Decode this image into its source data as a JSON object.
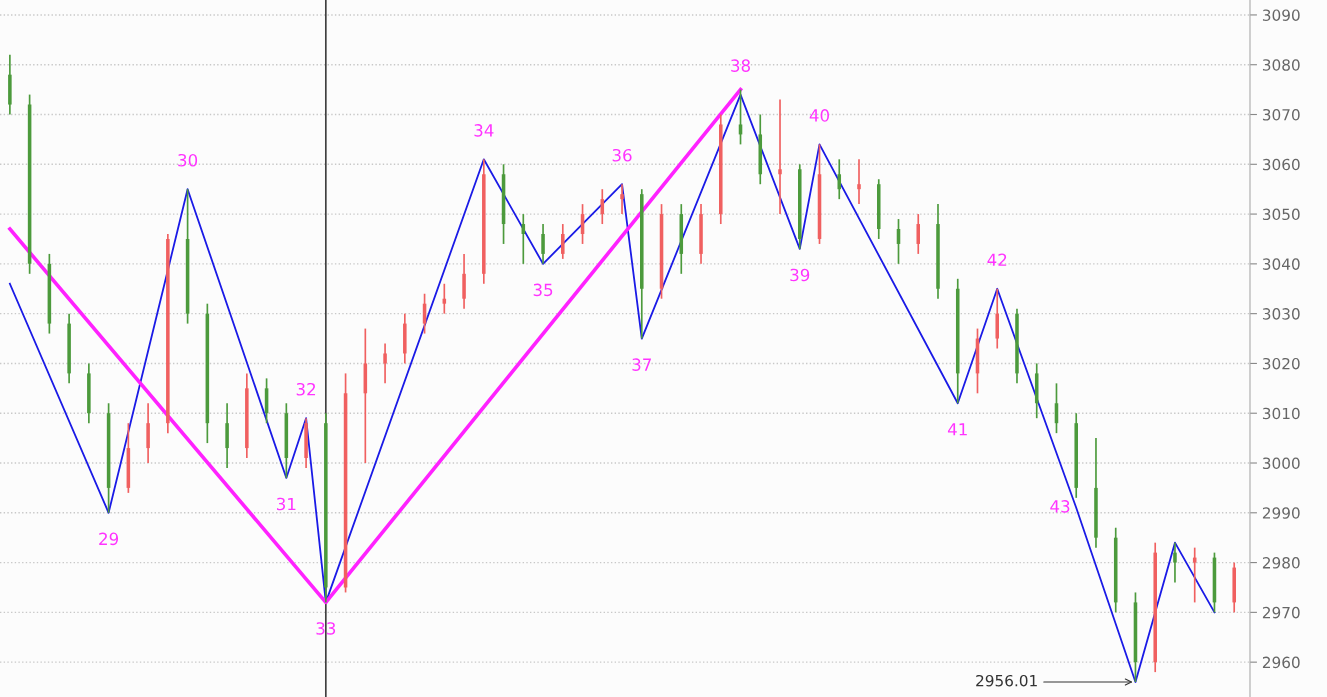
{
  "chart_data": {
    "type": "candlestick",
    "categories": [
      null,
      null,
      null,
      null,
      null,
      null,
      null,
      null,
      null,
      null,
      null,
      null,
      null,
      null,
      null,
      null,
      null,
      null,
      null,
      null,
      null,
      null,
      null,
      null,
      null,
      null,
      null,
      null,
      null,
      null,
      null,
      null,
      null,
      null,
      null,
      null,
      null,
      null,
      null,
      null,
      null,
      null,
      null,
      null,
      null,
      null,
      null,
      null,
      null,
      null,
      null,
      null,
      null,
      null,
      null,
      null,
      null,
      null,
      null,
      null,
      null,
      null,
      null
    ],
    "ohlc": [
      [
        3078,
        3082,
        3070,
        3072
      ],
      [
        3072,
        3074,
        3038,
        3040
      ],
      [
        3040,
        3042,
        3026,
        3028
      ],
      [
        3028,
        3030,
        3016,
        3018
      ],
      [
        3018,
        3020,
        3008,
        3010
      ],
      [
        3010,
        3012,
        2990,
        2995
      ],
      [
        2995,
        3008,
        2994,
        3003
      ],
      [
        3003,
        3012,
        3000,
        3008
      ],
      [
        3008,
        3046,
        3006,
        3045
      ],
      [
        3045,
        3055,
        3028,
        3030
      ],
      [
        3030,
        3032,
        3004,
        3008
      ],
      [
        3008,
        3012,
        2999,
        3003
      ],
      [
        3003,
        3018,
        3001,
        3015
      ],
      [
        3015,
        3017,
        3008,
        3010
      ],
      [
        3010,
        3012,
        2997,
        3001
      ],
      [
        3001,
        3009,
        2999,
        3008
      ],
      [
        3008,
        3010,
        2972,
        2975
      ],
      [
        2975,
        3018,
        2974,
        3014
      ],
      [
        3014,
        3027,
        3000,
        3020
      ],
      [
        3020,
        3024,
        3016,
        3022
      ],
      [
        3022,
        3030,
        3020,
        3028
      ],
      [
        3028,
        3034,
        3026,
        3032
      ],
      [
        3032,
        3036,
        3030,
        3033
      ],
      [
        3033,
        3042,
        3031,
        3038
      ],
      [
        3038,
        3061,
        3036,
        3058
      ],
      [
        3058,
        3060,
        3044,
        3048
      ],
      [
        3048,
        3050,
        3040,
        3046
      ],
      [
        3046,
        3048,
        3040,
        3042
      ],
      [
        3042,
        3048,
        3041,
        3046
      ],
      [
        3046,
        3052,
        3044,
        3050
      ],
      [
        3050,
        3055,
        3048,
        3053
      ],
      [
        3053,
        3056,
        3050,
        3054
      ],
      [
        3054,
        3055,
        3025,
        3035
      ],
      [
        3035,
        3052,
        3033,
        3050
      ],
      [
        3050,
        3052,
        3038,
        3042
      ],
      [
        3042,
        3052,
        3040,
        3050
      ],
      [
        3050,
        3070,
        3048,
        3068
      ],
      [
        3068,
        3075,
        3064,
        3066
      ],
      [
        3066,
        3070,
        3056,
        3058
      ],
      [
        3058,
        3073,
        3050,
        3059
      ],
      [
        3059,
        3060,
        3043,
        3045
      ],
      [
        3045,
        3064,
        3044,
        3058
      ],
      [
        3058,
        3061,
        3053,
        3055
      ],
      [
        3055,
        3061,
        3052,
        3056
      ],
      [
        3056,
        3057,
        3045,
        3047
      ],
      [
        3047,
        3049,
        3040,
        3044
      ],
      [
        3044,
        3050,
        3042,
        3048
      ],
      [
        3048,
        3052,
        3033,
        3035
      ],
      [
        3035,
        3037,
        3012,
        3018
      ],
      [
        3018,
        3027,
        3014,
        3025
      ],
      [
        3025,
        3035,
        3023,
        3030
      ],
      [
        3030,
        3031,
        3016,
        3018
      ],
      [
        3018,
        3020,
        3009,
        3012
      ],
      [
        3012,
        3016,
        3006,
        3008
      ],
      [
        3008,
        3010,
        2993,
        2995
      ],
      [
        2995,
        3005,
        2983,
        2985
      ],
      [
        2985,
        2987,
        2970,
        2972
      ],
      [
        2972,
        2974,
        2956.01,
        2960
      ],
      [
        2960,
        2984,
        2958,
        2982
      ],
      [
        2982,
        2984,
        2976,
        2980
      ],
      [
        2980,
        2983,
        2972,
        2981
      ],
      [
        2981,
        2982,
        2970,
        2972
      ],
      [
        2972,
        2980,
        2970,
        2979
      ]
    ],
    "colors": [
      "#4c9a3c",
      "#4c9a3c",
      "#4c9a3c",
      "#4c9a3c",
      "#4c9a3c",
      "#4c9a3c",
      "#f06060",
      "#f06060",
      "#f06060",
      "#4c9a3c",
      "#4c9a3c",
      "#4c9a3c",
      "#f06060",
      "#4c9a3c",
      "#4c9a3c",
      "#f06060",
      "#4c9a3c",
      "#f06060",
      "#f06060",
      "#f06060",
      "#f06060",
      "#f06060",
      "#f06060",
      "#f06060",
      "#f06060",
      "#4c9a3c",
      "#4c9a3c",
      "#4c9a3c",
      "#f06060",
      "#f06060",
      "#f06060",
      "#f06060",
      "#4c9a3c",
      "#f06060",
      "#4c9a3c",
      "#f06060",
      "#f06060",
      "#4c9a3c",
      "#4c9a3c",
      "#f06060",
      "#4c9a3c",
      "#f06060",
      "#4c9a3c",
      "#f06060",
      "#4c9a3c",
      "#4c9a3c",
      "#f06060",
      "#4c9a3c",
      "#4c9a3c",
      "#f06060",
      "#f06060",
      "#4c9a3c",
      "#4c9a3c",
      "#4c9a3c",
      "#4c9a3c",
      "#4c9a3c",
      "#4c9a3c",
      "#4c9a3c",
      "#f06060",
      "#4c9a3c",
      "#f06060",
      "#4c9a3c",
      "#f06060"
    ],
    "annotations": [
      "29",
      "30",
      "31",
      "32",
      "33",
      "34",
      "35",
      "36",
      "37",
      "38",
      "39",
      "40",
      "41",
      "42",
      "43"
    ],
    "series": [
      {
        "type": "line",
        "color": "#1a1ae6",
        "values": [
          3036,
          null,
          null,
          null,
          null,
          2990,
          null,
          null,
          null,
          3055,
          null,
          null,
          null,
          null,
          2997,
          3009,
          2972,
          null,
          null,
          null,
          null,
          null,
          null,
          null,
          3061,
          null,
          null,
          3040,
          null,
          null,
          null,
          3056,
          3025,
          null,
          null,
          null,
          null,
          3074,
          null,
          null,
          3043,
          3064,
          null,
          null,
          null,
          null,
          null,
          null,
          3012,
          null,
          3035,
          null,
          null,
          null,
          2991,
          null,
          null,
          2956.01,
          null,
          2984,
          null,
          2970,
          null
        ],
        "value_labels": [
          null,
          null,
          null,
          null,
          null,
          null,
          null,
          null,
          null,
          null,
          null,
          null,
          null,
          null,
          null,
          null,
          null,
          null,
          null,
          null,
          null,
          null,
          null,
          null,
          null,
          null,
          null,
          null,
          null,
          null,
          null,
          null,
          null,
          null,
          null,
          null,
          null,
          null,
          null,
          null,
          null,
          null,
          null,
          null,
          null,
          null,
          null,
          null,
          null,
          null,
          null,
          null,
          null,
          null,
          null,
          null,
          null,
          "2956.01",
          null,
          null,
          null,
          null,
          null
        ]
      },
      {
        "type": "line",
        "color": "#ff22ff",
        "values": [
          3047,
          null,
          null,
          null,
          null,
          null,
          null,
          null,
          null,
          null,
          null,
          null,
          null,
          null,
          null,
          null,
          2972,
          null,
          null,
          null,
          null,
          null,
          null,
          null,
          null,
          null,
          null,
          null,
          null,
          null,
          null,
          null,
          null,
          null,
          null,
          null,
          null,
          3075,
          null,
          null,
          null,
          null,
          null,
          null,
          null,
          null,
          null,
          null,
          null,
          null,
          null,
          null,
          null,
          null,
          null,
          null,
          null,
          null,
          null,
          null,
          null,
          null,
          null
        ]
      }
    ],
    "ylim": [
      2953,
      3093
    ],
    "yticks": [
      2960,
      2970,
      2980,
      2990,
      3000,
      3010,
      3020,
      3030,
      3040,
      3050,
      3060,
      3070,
      3080,
      3090
    ],
    "grid": "y",
    "tick_labels": "y"
  }
}
